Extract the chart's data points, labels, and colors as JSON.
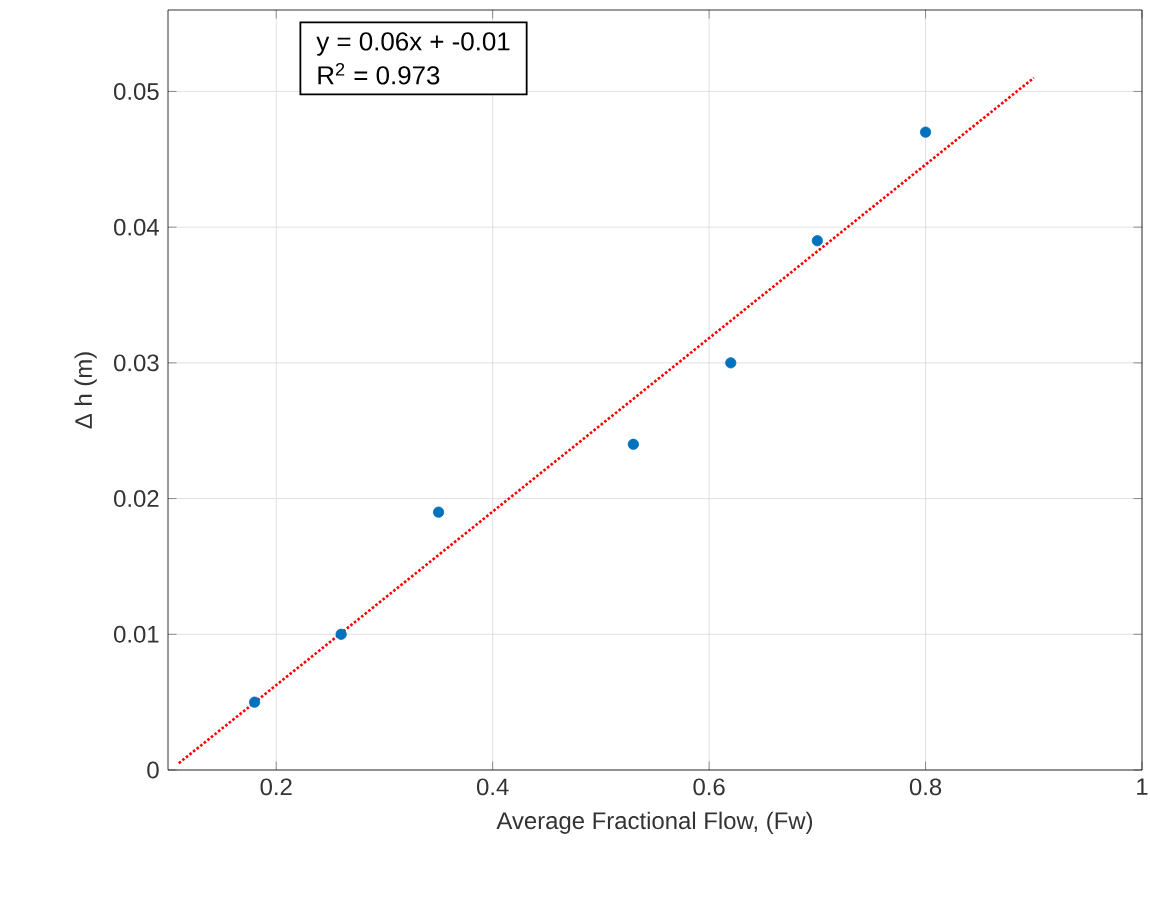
{
  "chart_data": {
    "type": "scatter",
    "xlabel": "Average Fractional Flow, (Fw)",
    "ylabel": "Δ h (m)",
    "xlim": [
      0.1,
      1
    ],
    "ylim": [
      0,
      0.056
    ],
    "xticks": [
      0.2,
      0.4,
      0.6,
      0.8,
      1
    ],
    "yticks": [
      0,
      0.01,
      0.02,
      0.03,
      0.04,
      0.05
    ],
    "grid": true,
    "marker": "circle",
    "annotations": [
      "y = 0.06x + -0.01",
      "R$^{2}$ = 0.973"
    ],
    "series": [
      {
        "color": "#0072bd",
        "x": [
          0.18,
          0.26,
          0.35,
          0.53,
          0.62,
          0.7,
          0.8
        ],
        "values": [
          0.005,
          0.01,
          0.019,
          0.024,
          0.03,
          0.039,
          0.047
        ]
      },
      {
        "type": "line",
        "color": "#ff0000",
        "line_style": "dotted",
        "marker": "none",
        "x": [
          0.11,
          0.9
        ],
        "values": [
          0.0005,
          0.051
        ]
      }
    ]
  }
}
